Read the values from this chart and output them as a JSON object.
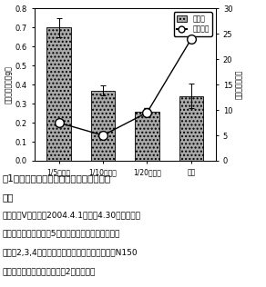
{
  "categories": [
    "1/5倍濃度",
    "1/10倍濃度",
    "1/20倍濃度",
    "慣行"
  ],
  "bar_values": [
    0.7,
    0.37,
    0.26,
    0.34
  ],
  "bar_errors": [
    0.05,
    0.025,
    0.015,
    0.065
  ],
  "line_values": [
    7.5,
    5.0,
    9.5,
    24.0
  ],
  "line_errors": [
    0.0,
    0.0,
    0.8,
    0.0
  ],
  "bar_color": "#aaaaaa",
  "bar_hatch": "....",
  "line_color": "#000000",
  "marker_color": "#ffffff",
  "ylabel_left": "地上部生体重（g）",
  "ylabel_right": "変動係数（％）",
  "ylim_left": [
    0.0,
    0.8
  ],
  "ylim_right": [
    0,
    30
  ],
  "yticks_left": [
    0.0,
    0.1,
    0.2,
    0.3,
    0.4,
    0.5,
    0.6,
    0.7,
    0.8
  ],
  "yticks_right": [
    0,
    5,
    10,
    15,
    20,
    25,
    30
  ],
  "legend_bar": "生体重",
  "legend_line": "変動係数",
  "background_color": "#ffffff",
  "caption_line1": "図1　育苗開始時培養液濃度と苗の生育・",
  "caption_line2": "揃い",
  "caption_line3": "（品種：Vレタス、2004.4.1播種、4.30育苗終了）",
  "caption_line4": "　誤差範囲は危険率　5％（両側検定）信頼区間を示",
  "caption_line5": "す（図2,3,4とも同じ）。なお、「慣行」は与作N150",
  "caption_line6": "を用いた頭上かん水育苗（図2とも同じ）"
}
